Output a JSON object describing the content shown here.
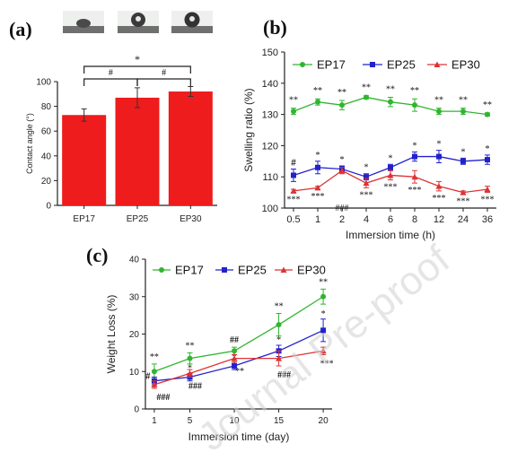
{
  "panels": {
    "a": "(a)",
    "b": "(b)",
    "c": "(c)"
  },
  "watermark": "Journal Pre-proof",
  "chart_data": [
    {
      "panel": "a",
      "type": "bar",
      "categories": [
        "EP17",
        "EP25",
        "EP30"
      ],
      "values": [
        73,
        87,
        92
      ],
      "errors": [
        5,
        8,
        4
      ],
      "ylabel": "Contact angle (°)",
      "ylim": [
        0,
        100
      ],
      "yticks": [
        0,
        20,
        40,
        60,
        80,
        100
      ],
      "bar_color": "#ee1c1c",
      "significance": [
        {
          "from": "EP17",
          "to": "EP30",
          "label": "*",
          "level": 2
        },
        {
          "from": "EP17",
          "to": "EP25",
          "label": "#",
          "level": 1
        },
        {
          "from": "EP25",
          "to": "EP30",
          "label": "#",
          "level": 1
        }
      ]
    },
    {
      "panel": "b",
      "type": "line",
      "categories": [
        "0.5",
        "1",
        "2",
        "4",
        "6",
        "8",
        "12",
        "24",
        "36"
      ],
      "xlabel": "Immersion time (h)",
      "ylabel": "Swelling ratio (%)",
      "ylim": [
        100,
        150
      ],
      "yticks": [
        100,
        110,
        120,
        130,
        140,
        150
      ],
      "legend_position": "top",
      "series": [
        {
          "name": "EP17",
          "color": "#2fb52f",
          "marker": "circle",
          "values": [
            131,
            134,
            133,
            135.5,
            134,
            133,
            131,
            131,
            130
          ],
          "errors": [
            1,
            1,
            1.5,
            0.5,
            1.5,
            2,
            1,
            1,
            0.5
          ],
          "annotations": [
            "**",
            "**",
            "**",
            "**",
            "**",
            "**",
            "**",
            "**",
            "**"
          ]
        },
        {
          "name": "EP25",
          "color": "#2222cc",
          "marker": "square",
          "values": [
            110.5,
            113,
            112.5,
            110,
            113,
            116.5,
            116.5,
            115,
            115.5
          ],
          "errors": [
            2,
            2,
            1,
            1,
            1,
            1.5,
            2,
            1,
            1.5
          ],
          "annotations": [
            "#",
            "*",
            "*",
            "*",
            "*",
            "*",
            "*",
            "*",
            "*"
          ]
        },
        {
          "name": "EP30",
          "color": "#dd3333",
          "marker": "triangle",
          "values": [
            105.5,
            106.5,
            112,
            108,
            110.5,
            110,
            107,
            105,
            106
          ],
          "errors": [
            0.5,
            0.5,
            1,
            1.5,
            1.5,
            2,
            1.5,
            0.5,
            1
          ],
          "annotations": [
            "***",
            "***",
            "###",
            "***",
            "***",
            "***",
            "***",
            "***",
            "***"
          ]
        }
      ]
    },
    {
      "panel": "c",
      "type": "line",
      "x": [
        1,
        5,
        10,
        15,
        20
      ],
      "xlabel": "Immersion time (day)",
      "ylabel": "Weight Loss (%)",
      "xlim": [
        0,
        21
      ],
      "xticks": [
        1,
        5,
        10,
        15,
        20
      ],
      "ylim": [
        0,
        40
      ],
      "yticks": [
        0,
        10,
        20,
        30,
        40
      ],
      "legend_position": "top",
      "series": [
        {
          "name": "EP17",
          "color": "#2fb52f",
          "marker": "circle",
          "values": [
            10,
            13.5,
            15.5,
            22.5,
            30
          ],
          "errors": [
            2,
            1.5,
            1,
            3,
            2
          ],
          "annotations": [
            "**",
            "**",
            "##",
            "**",
            "**"
          ]
        },
        {
          "name": "EP25",
          "color": "#2222cc",
          "marker": "square",
          "values": [
            7.5,
            8.5,
            11.5,
            15.5,
            21
          ],
          "errors": [
            1,
            1,
            1,
            1.5,
            3
          ],
          "annotations": [
            "#",
            "*",
            "*",
            "*",
            "*"
          ]
        },
        {
          "name": "EP30",
          "color": "#dd3333",
          "marker": "triangle",
          "values": [
            6.5,
            9.5,
            13.5,
            13.5,
            15.5
          ],
          "errors": [
            1,
            1,
            1,
            2,
            1
          ],
          "annotations": [
            "###",
            "###",
            "**",
            "###",
            "***"
          ]
        }
      ]
    }
  ]
}
